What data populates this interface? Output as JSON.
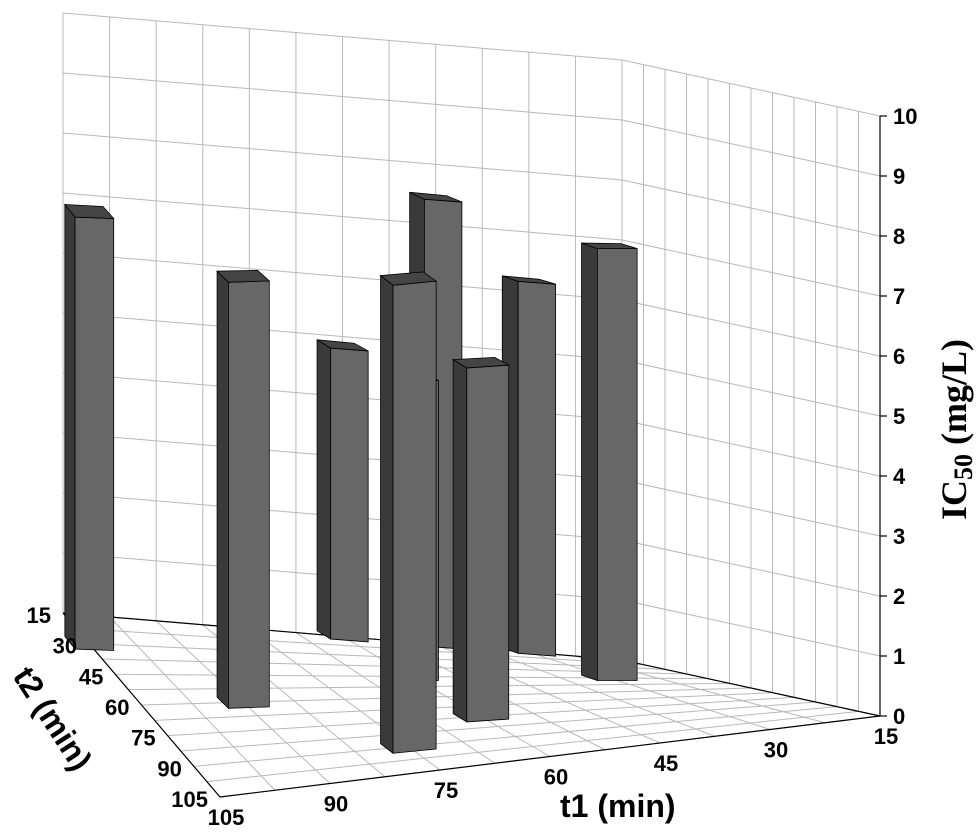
{
  "chart_data": {
    "type": "bar3d",
    "xlabel": "t1 (min)",
    "ylabel": "t2 (min)",
    "zlabel_main": "IC",
    "zlabel_sub": "50",
    "zlabel_unit": " (mg/L)",
    "x_ticks": [
      "105",
      "90",
      "75",
      "60",
      "45",
      "30",
      "15"
    ],
    "y_ticks": [
      "15",
      "30",
      "45",
      "60",
      "75",
      "90",
      "105"
    ],
    "z_ticks": [
      "0",
      "1",
      "2",
      "3",
      "4",
      "5",
      "6",
      "7",
      "8",
      "9",
      "10"
    ],
    "zlim": [
      0,
      10
    ],
    "grid": true,
    "bar_color": "#676767",
    "bars": [
      {
        "t1": 105,
        "t2": 30,
        "value": 7.2
      },
      {
        "t1": 90,
        "t2": 60,
        "value": 7.1
      },
      {
        "t1": 75,
        "t2": 90,
        "value": 7.8
      },
      {
        "t1": 60,
        "t2": 15,
        "value": 4.85
      },
      {
        "t1": 60,
        "t2": 45,
        "value": 5.0
      },
      {
        "t1": 60,
        "t2": 75,
        "value": 5.9
      },
      {
        "t1": 45,
        "t2": 15,
        "value": 7.45
      },
      {
        "t1": 30,
        "t2": 15,
        "value": 6.2
      },
      {
        "t1": 30,
        "t2": 45,
        "value": 7.2
      }
    ]
  }
}
